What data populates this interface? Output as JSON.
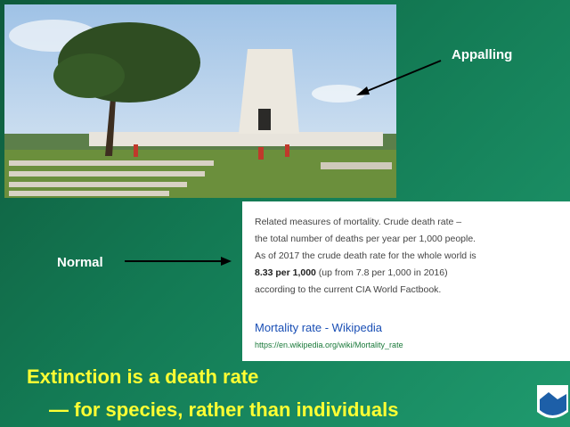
{
  "labels": {
    "appalling": "Appalling",
    "normal": "Normal"
  },
  "snippet": {
    "lines": [
      "Related measures of mortality. Crude death rate –",
      "the total number of deaths per year per 1,000 people.",
      "As of 2017 the crude death rate for the whole world is"
    ],
    "bold": "8.33 per 1,000",
    "after_bold": " (up from 7.8 per 1,000 in 2016)",
    "last_line": "according to the current CIA World Factbook.",
    "link_title": "Mortality rate - Wikipedia",
    "url": "https://en.wikipedia.org/wiki/Mortality_rate"
  },
  "headline": {
    "line1": "Extinction is a death rate",
    "line2": "— for species, rather than individuals"
  }
}
